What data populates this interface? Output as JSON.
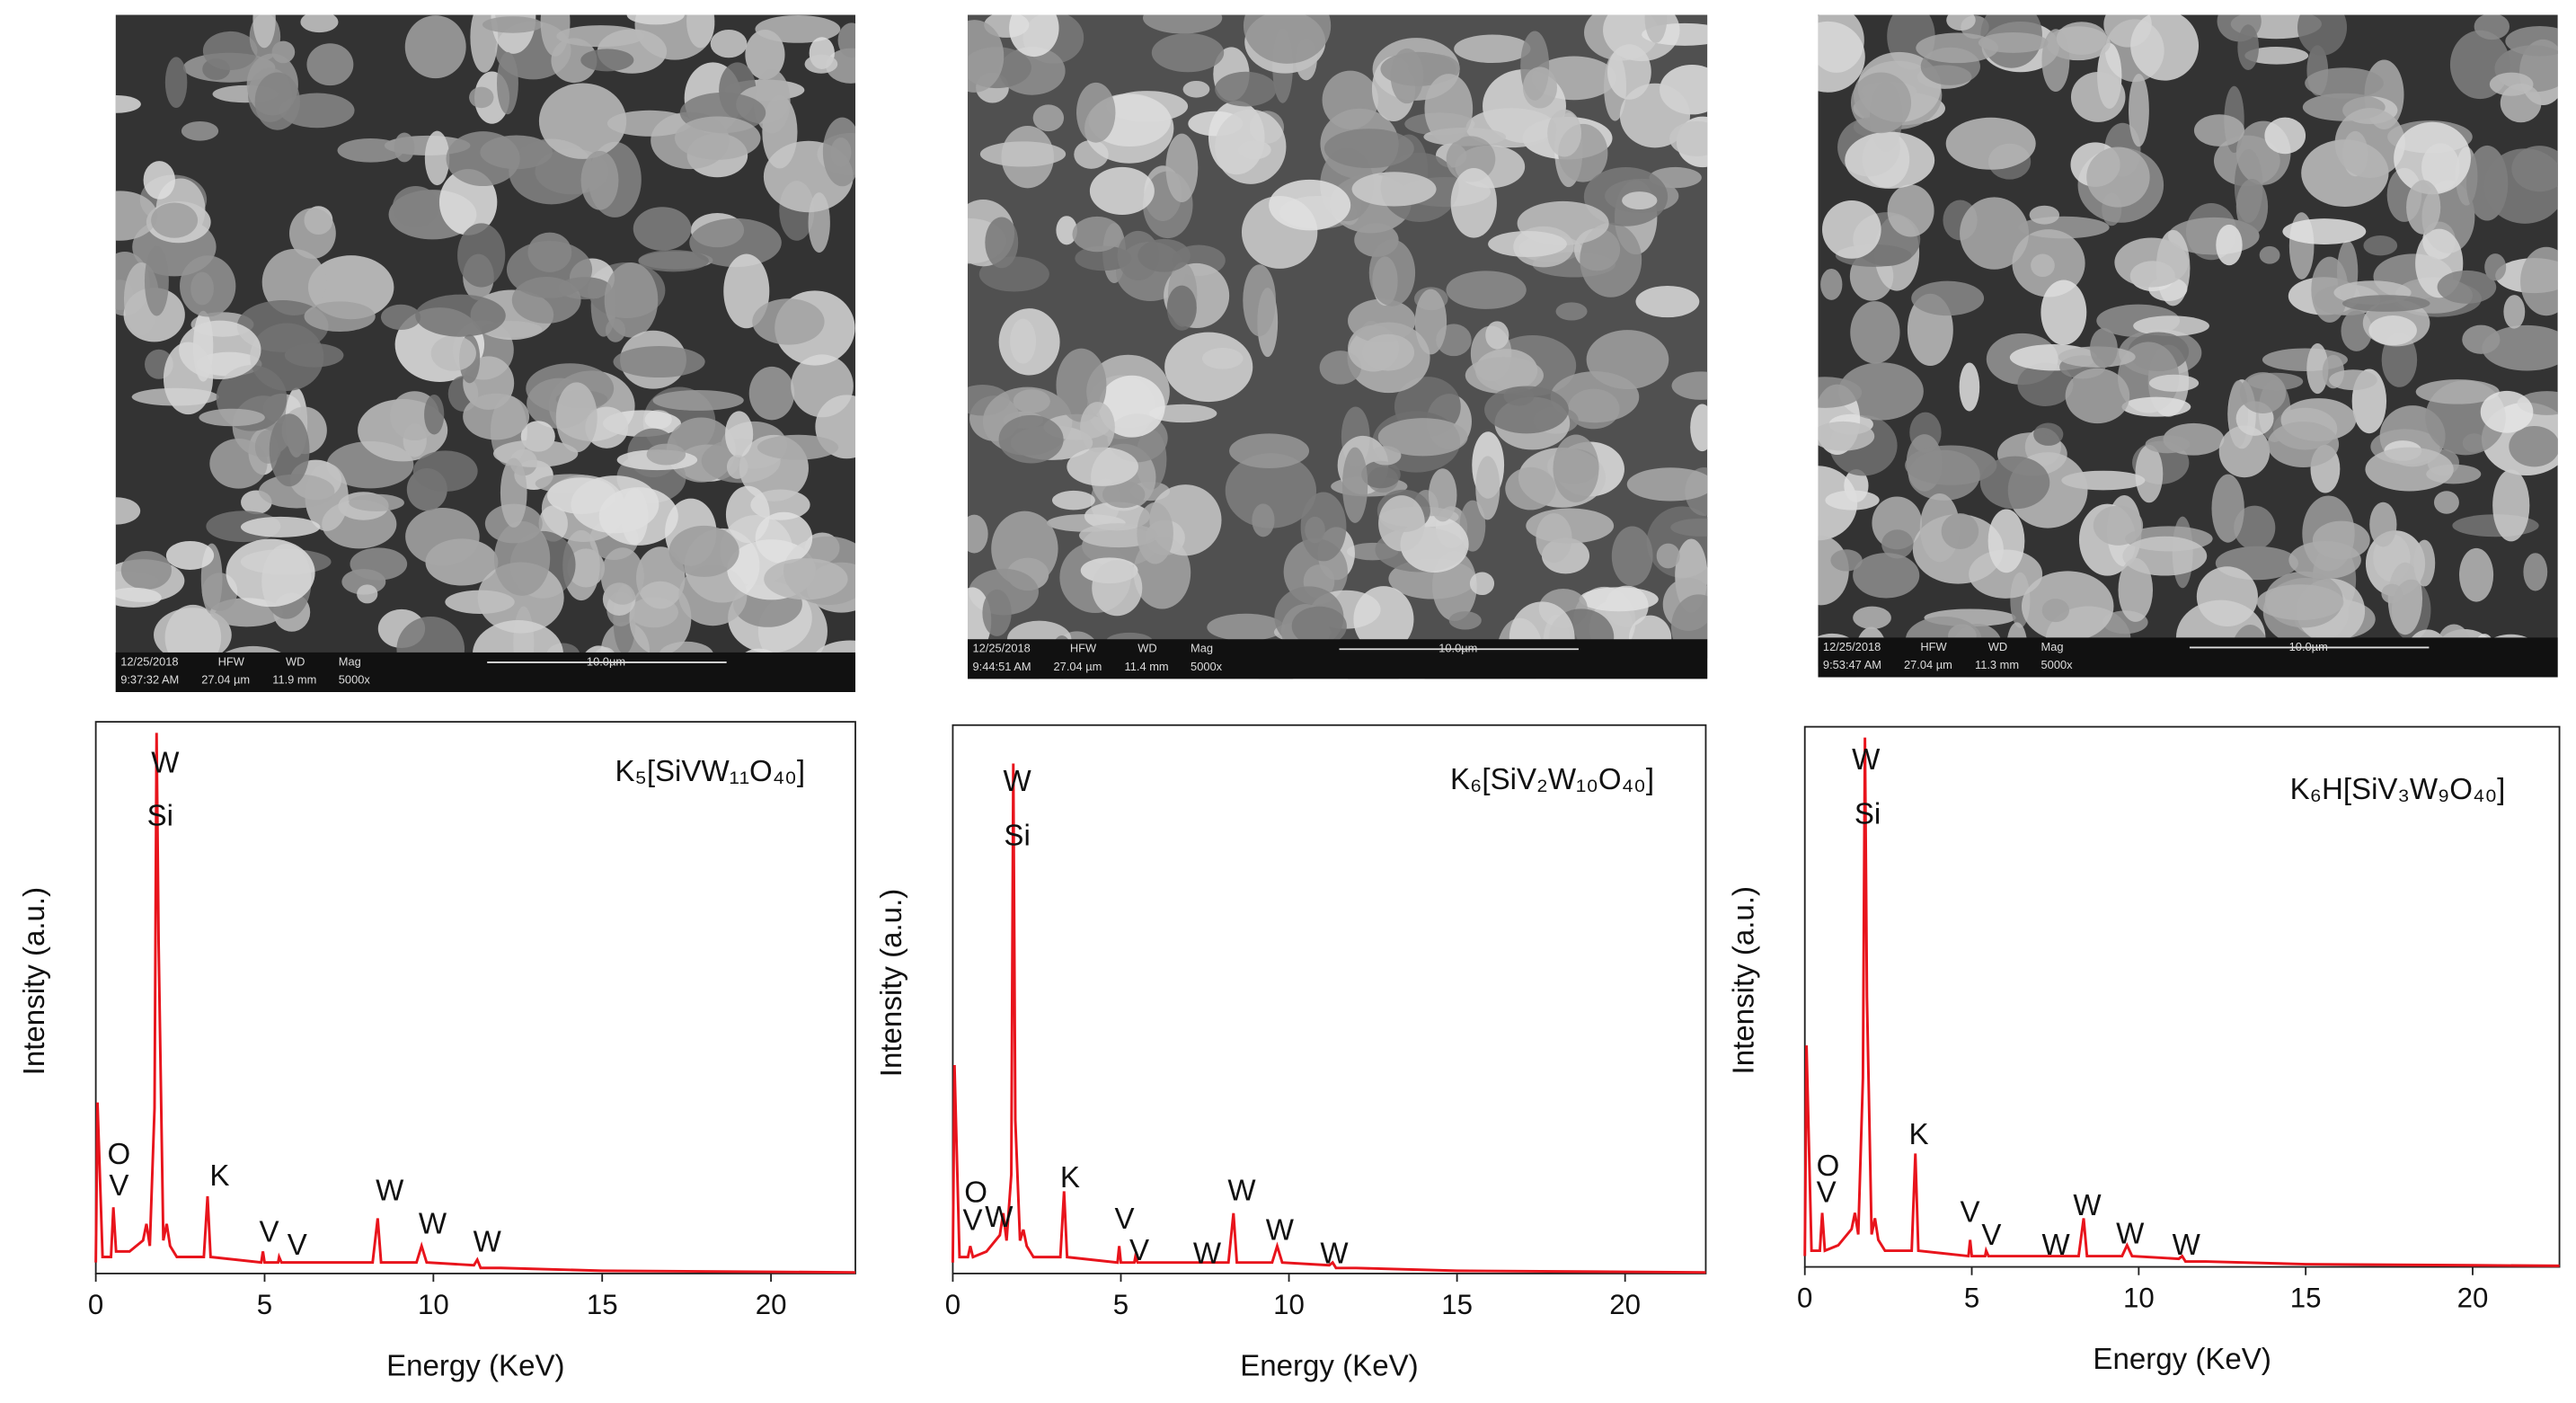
{
  "chart_data": [
    {
      "type": "line",
      "formula": "K₅[SiVW₁₁O₄₀]",
      "x_label": "Energy (KeV)",
      "y_label": "Intensity (a.u.)",
      "color": "#e8141c",
      "x": [
        0,
        0.05,
        0.2,
        0.45,
        0.52,
        0.6,
        1.0,
        1.4,
        1.5,
        1.6,
        1.74,
        1.8,
        1.86,
        2.0,
        2.1,
        2.2,
        2.4,
        3.2,
        3.31,
        3.4,
        4.9,
        4.95,
        5.0,
        5.4,
        5.43,
        5.5,
        8.2,
        8.35,
        8.45,
        9.5,
        9.65,
        9.8,
        11.2,
        11.3,
        11.4,
        12,
        15,
        20,
        22.5
      ],
      "values": [
        2,
        31,
        3,
        3,
        12,
        4,
        4,
        6,
        9,
        5,
        30,
        98,
        60,
        6,
        9,
        5,
        3,
        3,
        14,
        3,
        2,
        4,
        2,
        2,
        3,
        2,
        2,
        10,
        2,
        2,
        5,
        2,
        1.5,
        2.5,
        1,
        1,
        0.5,
        0.3,
        0.2
      ],
      "xlim": [
        0,
        22.5
      ],
      "ylim": [
        0,
        100
      ],
      "xticks": [
        0,
        5,
        10,
        15,
        20
      ],
      "annotations": [
        "W",
        "Si",
        "O",
        "V",
        "K",
        "W",
        "V",
        "V",
        "W",
        "W"
      ]
    },
    {
      "type": "line",
      "formula": "K₆[SiV₂W₁₀O₄₀]",
      "x_label": "Energy (KeV)",
      "y_label": "Intensity (a.u.)",
      "color": "#e8141c",
      "x": [
        0,
        0.05,
        0.2,
        0.45,
        0.52,
        0.6,
        1.0,
        1.4,
        1.5,
        1.6,
        1.74,
        1.8,
        1.86,
        2.0,
        2.1,
        2.2,
        2.4,
        3.2,
        3.31,
        3.4,
        4.9,
        4.95,
        5.0,
        5.4,
        5.43,
        5.5,
        8.2,
        8.35,
        8.45,
        9.5,
        9.65,
        9.8,
        11.2,
        11.3,
        11.4,
        12,
        15,
        20,
        22.4
      ],
      "values": [
        2,
        38,
        3,
        3,
        5,
        3,
        4,
        7,
        11,
        6,
        18,
        93,
        28,
        6,
        8,
        5,
        3,
        3,
        15,
        3,
        2,
        5,
        2,
        2,
        3,
        2,
        2,
        11,
        2,
        2,
        5,
        2,
        1.5,
        2,
        1,
        1,
        0.5,
        0.3,
        0.2
      ],
      "xlim": [
        0,
        22.4
      ],
      "ylim": [
        0,
        100
      ],
      "xticks": [
        0,
        5,
        10,
        15,
        20
      ],
      "annotations": [
        "W",
        "Si",
        "O",
        "V",
        "W",
        "K",
        "V",
        "V",
        "W",
        "W",
        "W",
        "W"
      ]
    },
    {
      "type": "line",
      "formula": "K₆H[SiV₃W₉O₄₀]",
      "x_label": "Energy (KeV)",
      "y_label": "Intensity (a.u.)",
      "color": "#e8141c",
      "x": [
        0,
        0.05,
        0.2,
        0.45,
        0.52,
        0.6,
        1.0,
        1.4,
        1.5,
        1.6,
        1.74,
        1.8,
        1.86,
        2.0,
        2.1,
        2.2,
        2.4,
        3.2,
        3.31,
        3.4,
        4.9,
        4.95,
        5.0,
        5.4,
        5.43,
        5.5,
        8.2,
        8.35,
        8.45,
        9.5,
        9.65,
        9.8,
        11.2,
        11.3,
        11.4,
        12,
        15,
        20,
        22.6
      ],
      "values": [
        2,
        41,
        3,
        3,
        10,
        3,
        4,
        7,
        10,
        6,
        35,
        98,
        50,
        6,
        9,
        5,
        3,
        3,
        21,
        3,
        2,
        5,
        2,
        2,
        3,
        2,
        2,
        9,
        2,
        2,
        4,
        2,
        1.5,
        2,
        1,
        1,
        0.5,
        0.3,
        0.2
      ],
      "xlim": [
        0,
        22.6
      ],
      "ylim": [
        0,
        100
      ],
      "xticks": [
        0,
        5,
        10,
        15,
        20
      ],
      "annotations": [
        "W",
        "Si",
        "O",
        "V",
        "K",
        "V",
        "V",
        "W",
        "W",
        "W",
        "W"
      ]
    }
  ],
  "images": [
    {
      "date": "12/25/2018",
      "hfw_label": "HFW",
      "wd_label": "WD",
      "mag_label": "Mag",
      "time": "9:37:32 AM",
      "hfw": "27.04 µm",
      "wd": "11.9 mm",
      "mag": "5000x",
      "scale": "10.0µm"
    },
    {
      "date": "12/25/2018",
      "hfw_label": "HFW",
      "wd_label": "WD",
      "mag_label": "Mag",
      "time": "9:44:51 AM",
      "hfw": "27.04 µm",
      "wd": "11.4 mm",
      "mag": "5000x",
      "scale": "10.0µm"
    },
    {
      "date": "12/25/2018",
      "hfw_label": "HFW",
      "wd_label": "WD",
      "mag_label": "Mag",
      "time": "9:53:47 AM",
      "hfw": "27.04 µm",
      "wd": "11.3 mm",
      "mag": "5000x",
      "scale": "10.0µm"
    }
  ]
}
